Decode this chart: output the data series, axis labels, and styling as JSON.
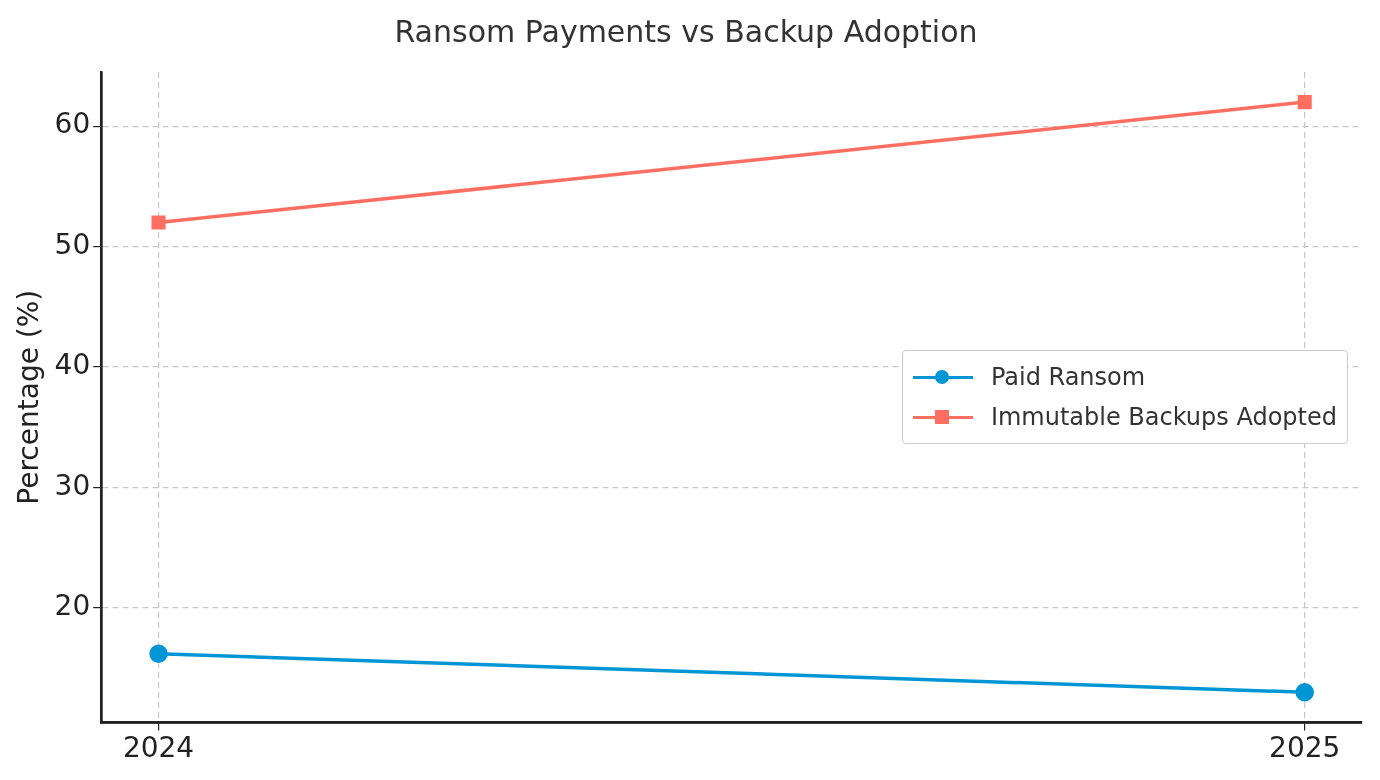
{
  "chart_data": {
    "type": "line",
    "title": "Ransom Payments vs Backup Adoption",
    "ylabel": "Percentage (%)",
    "x": [
      2024,
      2025
    ],
    "xlim": [
      2023.95,
      2025.05
    ],
    "xticks": [
      2024,
      2025
    ],
    "ylim": [
      10.5,
      64.5
    ],
    "yticks": [
      20,
      30,
      40,
      50,
      60
    ],
    "series": [
      {
        "name": "Paid Ransom",
        "color": "#0096d6",
        "values": [
          16.2,
          13
        ],
        "marker": "circle"
      },
      {
        "name": "Immutable Backups Adopted",
        "color": "#ff6f61",
        "values": [
          52,
          62
        ],
        "marker": "square"
      }
    ],
    "grid": true,
    "legend": "right",
    "line_style": "solid"
  }
}
